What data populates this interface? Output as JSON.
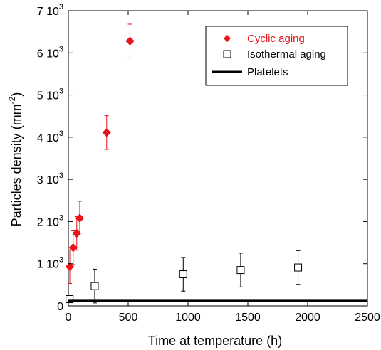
{
  "chart_data": {
    "type": "scatter",
    "xlabel": "Time at temperature (h)",
    "ylabel_main": "Particles density (mm",
    "ylabel_sup": "-2",
    "ylabel_close": ")",
    "xlim": [
      0,
      2500
    ],
    "ylim": [
      0,
      7000
    ],
    "x_ticks": [
      {
        "value": 0,
        "label": "0"
      },
      {
        "value": 500,
        "label": "500"
      },
      {
        "value": 1000,
        "label": "1000"
      },
      {
        "value": 1500,
        "label": "1500"
      },
      {
        "value": 2000,
        "label": "2000"
      },
      {
        "value": 2500,
        "label": "2500"
      }
    ],
    "y_ticks": [
      {
        "value": 0,
        "base": "0",
        "exp": ""
      },
      {
        "value": 1000,
        "base": "1 10",
        "exp": "3"
      },
      {
        "value": 2000,
        "base": "2 10",
        "exp": "3"
      },
      {
        "value": 3000,
        "base": "3 10",
        "exp": "3"
      },
      {
        "value": 4000,
        "base": "4 10",
        "exp": "3"
      },
      {
        "value": 5000,
        "base": "5 10",
        "exp": "3"
      },
      {
        "value": 6000,
        "base": "6 10",
        "exp": "3"
      },
      {
        "value": 7000,
        "base": "7 10",
        "exp": "3"
      }
    ],
    "grid": false,
    "legend_position": "top-right",
    "series": [
      {
        "name": "Cyclic aging",
        "marker": "filled-diamond",
        "color": "#e8141a",
        "points": [
          {
            "x": 12,
            "y": 930,
            "err": 400
          },
          {
            "x": 40,
            "y": 1380,
            "err": 400
          },
          {
            "x": 70,
            "y": 1720,
            "err": 400
          },
          {
            "x": 95,
            "y": 2080,
            "err": 400
          },
          {
            "x": 320,
            "y": 4110,
            "err": 400
          },
          {
            "x": 515,
            "y": 6280,
            "err": 400
          }
        ]
      },
      {
        "name": "Isothermal aging",
        "marker": "open-square",
        "color": "#000000",
        "points": [
          {
            "x": 10,
            "y": 160,
            "err": 0
          },
          {
            "x": 220,
            "y": 470,
            "err": 400
          },
          {
            "x": 960,
            "y": 750,
            "err": 400
          },
          {
            "x": 1440,
            "y": 850,
            "err": 400
          },
          {
            "x": 1920,
            "y": 910,
            "err": 400
          }
        ]
      },
      {
        "name": "Platelets",
        "marker": "line",
        "color": "#000000",
        "y": 120
      }
    ]
  }
}
